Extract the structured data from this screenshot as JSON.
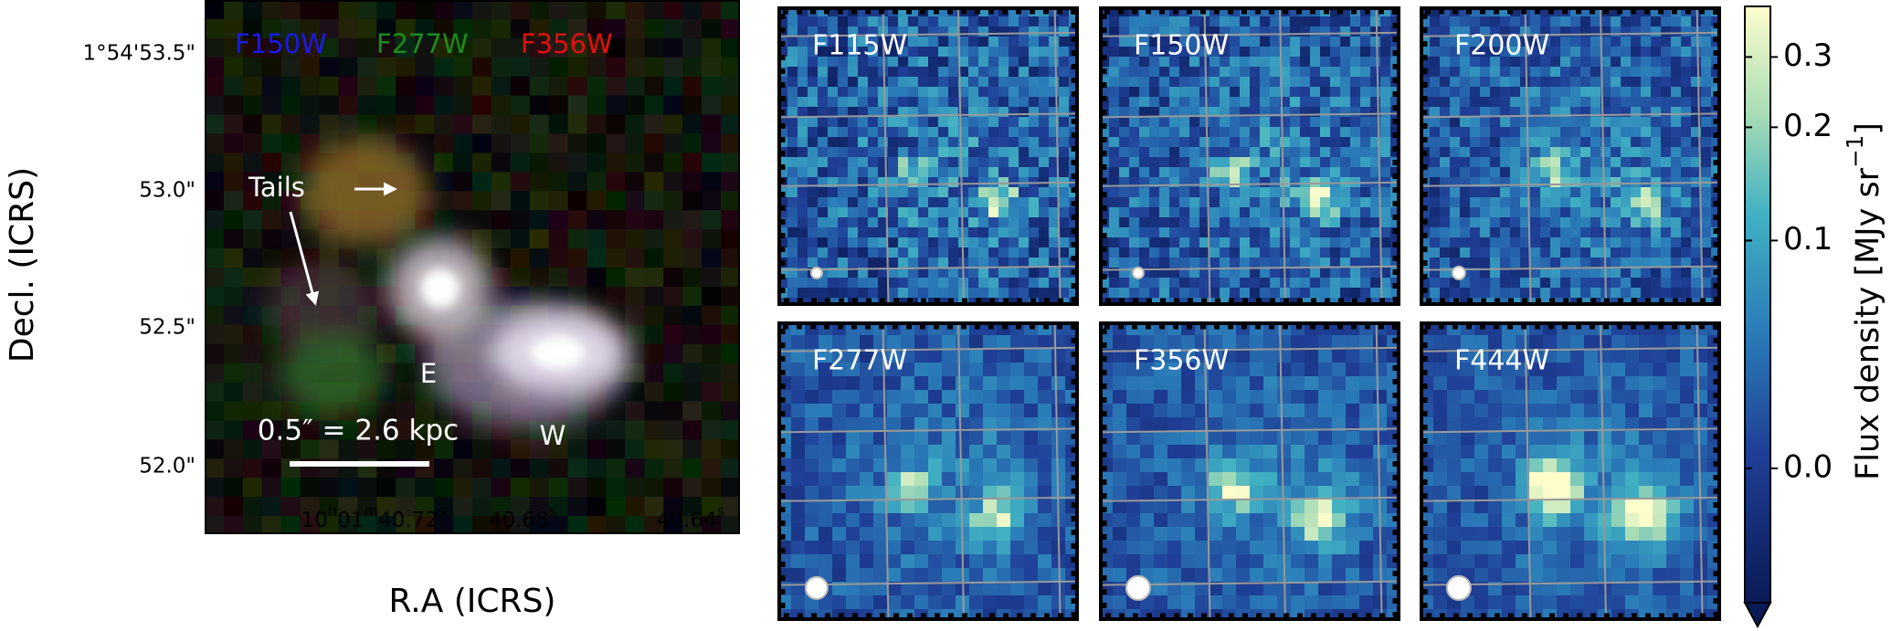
{
  "rgb_panel": {
    "filters": [
      {
        "name": "F150W",
        "color": "#1a1ae6"
      },
      {
        "name": "F277W",
        "color": "#1f8a1f"
      },
      {
        "name": "F356W",
        "color": "#e01010"
      }
    ],
    "annotations": {
      "tails": "Tails",
      "east": "E",
      "west": "W",
      "scale_bar": "0.5″ = 2.6 kpc"
    },
    "y_axis": {
      "label": "Decl. (ICRS)",
      "ticks": [
        "1°54'53.5\"",
        "53.0\"",
        "52.5\"",
        "52.0\""
      ]
    },
    "x_axis": {
      "label": "R.A (ICRS)",
      "ticks": [
        "10h01m40.72s",
        "40.68s",
        "40.64s"
      ]
    }
  },
  "panels": [
    "F115W",
    "F150W",
    "F200W",
    "F277W",
    "F356W",
    "F444W"
  ],
  "colorbar": {
    "label": "Flux density [MJy sr−1]",
    "scale": "asinh",
    "lim": [
      -0.05,
      0.4
    ],
    "ticks": [
      0.3,
      0.2,
      0.1,
      {
        "value": 0,
        "label": "0.0"
      }
    ]
  }
}
